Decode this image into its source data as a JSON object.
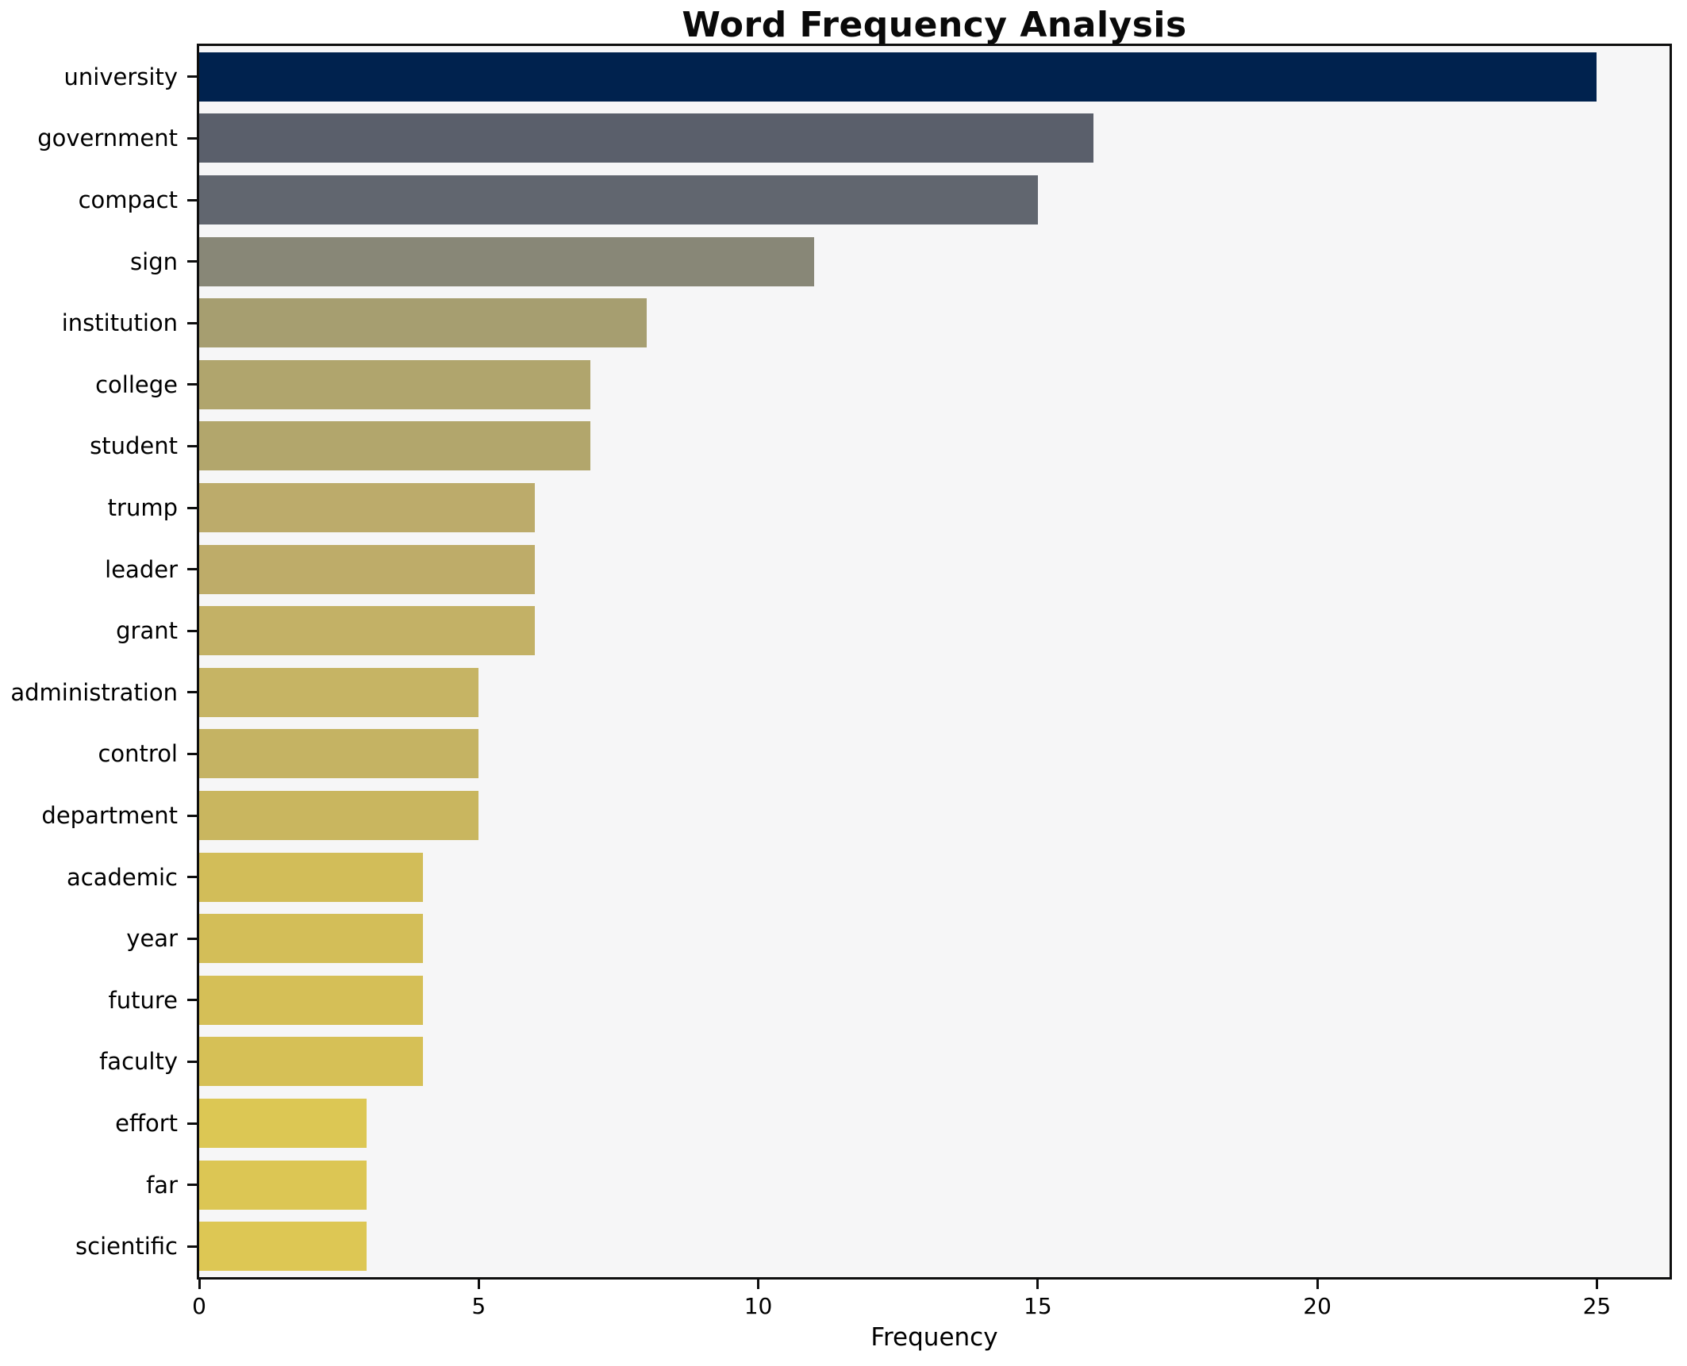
{
  "title": "Word Frequency Analysis",
  "chart_data": {
    "type": "bar",
    "orientation": "horizontal",
    "title": "Word Frequency Analysis",
    "xlabel": "Frequency",
    "ylabel": "",
    "categories": [
      "university",
      "government",
      "compact",
      "sign",
      "institution",
      "college",
      "student",
      "trump",
      "leader",
      "grant",
      "administration",
      "control",
      "department",
      "academic",
      "year",
      "future",
      "faculty",
      "effort",
      "far",
      "scientific"
    ],
    "values": [
      25,
      16,
      15,
      11,
      8,
      7,
      7,
      6,
      6,
      6,
      5,
      5,
      5,
      4,
      4,
      4,
      4,
      3,
      3,
      3
    ],
    "bar_colors": [
      "#00224e",
      "#5a5f6b",
      "#61666f",
      "#888777",
      "#a69e70",
      "#b0a56d",
      "#b2a66c",
      "#bcab6b",
      "#beac69",
      "#c3b166",
      "#c6b464",
      "#c5b363",
      "#c9b65f",
      "#d2bd59",
      "#d3be58",
      "#d5bf57",
      "#d6c056",
      "#dcc754",
      "#dcc654",
      "#ddc754"
    ],
    "xticks": [
      0,
      5,
      10,
      15,
      20,
      25
    ],
    "xlim": [
      0,
      26.3
    ],
    "grid": false,
    "legend": false,
    "plot_background": "#f6f6f7",
    "figure_background": "#ffffff",
    "spine_color": "#0e0e0e",
    "text_color": "#000000"
  }
}
